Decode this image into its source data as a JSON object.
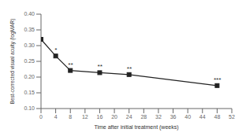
{
  "chart_data": {
    "type": "line",
    "x": [
      0,
      4,
      8,
      16,
      24,
      48
    ],
    "values": [
      0.32,
      0.267,
      0.221,
      0.214,
      0.208,
      0.173
    ],
    "color": "#222222",
    "marker": "square",
    "annotations": [
      {
        "x": 4,
        "y": 0.267,
        "text": "*"
      },
      {
        "x": 8,
        "y": 0.221,
        "text": "**"
      },
      {
        "x": 16,
        "y": 0.214,
        "text": "**"
      },
      {
        "x": 24,
        "y": 0.208,
        "text": "**"
      },
      {
        "x": 48,
        "y": 0.173,
        "text": "***"
      }
    ],
    "xlabel": "Time after initial treatment (weeks)",
    "ylabel": "Best-corrected visual acuity (logMAR)",
    "xlim": [
      0,
      52
    ],
    "ylim": [
      0.1,
      0.4
    ],
    "xticks": [
      0,
      4,
      8,
      12,
      16,
      20,
      24,
      28,
      32,
      36,
      40,
      44,
      48,
      52
    ],
    "yticks": [
      {
        "value": 0.1,
        "label": "0.10"
      },
      {
        "value": 0.15,
        "label": "0.15"
      },
      {
        "value": 0.2,
        "label": "0.20"
      },
      {
        "value": 0.25,
        "label": "0.25"
      },
      {
        "value": 0.3,
        "label": "0.30"
      },
      {
        "value": 0.35,
        "label": "0.35"
      },
      {
        "value": 0.4,
        "label": "0.40"
      }
    ],
    "grid": false
  }
}
